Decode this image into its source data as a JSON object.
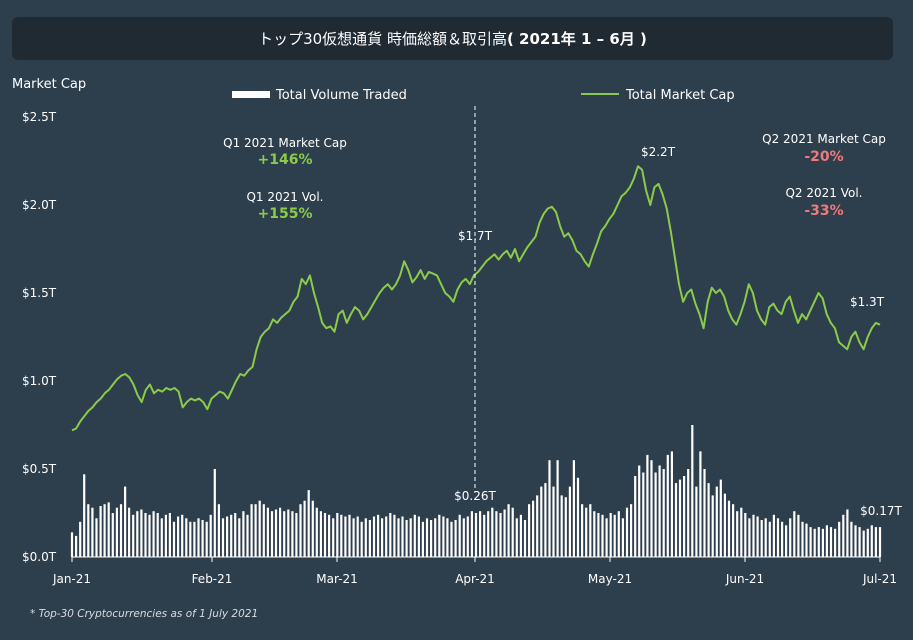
{
  "header": {
    "title_main": "トップ30仮想通貨 時価総額＆取引高",
    "title_period": "( 2021年 1 – 6月 )"
  },
  "footnote": "* Top-30  Cryptocurrencies as of 1 July 2021",
  "colors": {
    "background": "#2d3e4d",
    "title_bar": "#1f2a33",
    "market_cap_line": "#8ccb4a",
    "volume_bar": "#ffffff",
    "positive": "#8ccb4a",
    "negative": "#f07a7a"
  },
  "chart_data": {
    "type": "line",
    "ylabel": "Market Cap",
    "y_ticks": [
      "$0.0T",
      "$0.5T",
      "$1.0T",
      "$1.5T",
      "$2.0T",
      "$2.5T"
    ],
    "ylim": [
      0,
      2.5
    ],
    "x_ticks": [
      "Jan-21",
      "Feb-21",
      "Mar-21",
      "Apr-21",
      "May-21",
      "Jun-21",
      "Jul-21"
    ],
    "legend": {
      "volume": "Total Volume Traded",
      "market_cap": "Total Market Cap",
      "position": "top-center"
    },
    "annotations": {
      "q1_cap_label": "Q1 2021 Market Cap",
      "q1_cap_value": "+146%",
      "q1_vol_label": "Q1 2021 Vol.",
      "q1_vol_value": "+155%",
      "q2_cap_label": "Q2 2021 Market Cap",
      "q2_cap_value": "-20%",
      "q2_vol_label": "Q2 2021 Vol.",
      "q2_vol_value": "-33%",
      "apr_cap": "$1.7T",
      "apr_vol": "$0.26T",
      "peak_cap": "$2.2T",
      "end_cap": "$1.3T",
      "end_vol": "$0.17T"
    },
    "market_cap": [
      0.72,
      0.73,
      0.77,
      0.8,
      0.83,
      0.85,
      0.88,
      0.9,
      0.93,
      0.95,
      0.98,
      1.01,
      1.03,
      1.04,
      1.02,
      0.98,
      0.92,
      0.88,
      0.95,
      0.98,
      0.93,
      0.95,
      0.94,
      0.96,
      0.95,
      0.96,
      0.94,
      0.85,
      0.88,
      0.9,
      0.89,
      0.9,
      0.88,
      0.84,
      0.9,
      0.92,
      0.94,
      0.93,
      0.9,
      0.95,
      1.0,
      1.04,
      1.03,
      1.06,
      1.08,
      1.18,
      1.25,
      1.28,
      1.3,
      1.35,
      1.33,
      1.36,
      1.38,
      1.4,
      1.45,
      1.48,
      1.58,
      1.55,
      1.6,
      1.5,
      1.42,
      1.33,
      1.3,
      1.31,
      1.28,
      1.38,
      1.4,
      1.33,
      1.38,
      1.42,
      1.4,
      1.35,
      1.38,
      1.42,
      1.46,
      1.5,
      1.53,
      1.55,
      1.52,
      1.55,
      1.6,
      1.68,
      1.63,
      1.56,
      1.59,
      1.63,
      1.58,
      1.62,
      1.61,
      1.6,
      1.55,
      1.5,
      1.48,
      1.45,
      1.52,
      1.56,
      1.58,
      1.55,
      1.6,
      1.62,
      1.65,
      1.68,
      1.7,
      1.72,
      1.69,
      1.72,
      1.74,
      1.7,
      1.75,
      1.68,
      1.72,
      1.76,
      1.79,
      1.82,
      1.9,
      1.95,
      1.98,
      1.99,
      1.96,
      1.88,
      1.82,
      1.84,
      1.8,
      1.74,
      1.72,
      1.68,
      1.65,
      1.72,
      1.78,
      1.85,
      1.88,
      1.92,
      1.95,
      2.0,
      2.05,
      2.07,
      2.1,
      2.15,
      2.22,
      2.2,
      2.08,
      2.0,
      2.1,
      2.12,
      2.06,
      1.98,
      1.85,
      1.7,
      1.55,
      1.45,
      1.5,
      1.52,
      1.44,
      1.38,
      1.3,
      1.45,
      1.53,
      1.5,
      1.52,
      1.48,
      1.4,
      1.35,
      1.32,
      1.38,
      1.45,
      1.55,
      1.5,
      1.4,
      1.35,
      1.32,
      1.42,
      1.44,
      1.4,
      1.38,
      1.45,
      1.48,
      1.4,
      1.33,
      1.38,
      1.35,
      1.4,
      1.45,
      1.5,
      1.47,
      1.38,
      1.33,
      1.3,
      1.22,
      1.2,
      1.18,
      1.25,
      1.28,
      1.22,
      1.18,
      1.25,
      1.3,
      1.33,
      1.32
    ],
    "volume": [
      0.14,
      0.12,
      0.2,
      0.47,
      0.3,
      0.28,
      0.22,
      0.29,
      0.3,
      0.31,
      0.25,
      0.28,
      0.3,
      0.4,
      0.28,
      0.24,
      0.26,
      0.27,
      0.25,
      0.24,
      0.26,
      0.25,
      0.22,
      0.24,
      0.25,
      0.2,
      0.23,
      0.24,
      0.22,
      0.2,
      0.2,
      0.22,
      0.21,
      0.2,
      0.24,
      0.5,
      0.3,
      0.22,
      0.23,
      0.24,
      0.25,
      0.22,
      0.26,
      0.24,
      0.3,
      0.3,
      0.32,
      0.3,
      0.28,
      0.26,
      0.27,
      0.28,
      0.26,
      0.27,
      0.26,
      0.25,
      0.3,
      0.32,
      0.38,
      0.32,
      0.28,
      0.26,
      0.25,
      0.24,
      0.22,
      0.25,
      0.24,
      0.23,
      0.24,
      0.22,
      0.23,
      0.2,
      0.22,
      0.21,
      0.23,
      0.24,
      0.22,
      0.23,
      0.25,
      0.24,
      0.22,
      0.23,
      0.21,
      0.22,
      0.24,
      0.23,
      0.2,
      0.22,
      0.21,
      0.22,
      0.24,
      0.23,
      0.22,
      0.2,
      0.21,
      0.24,
      0.22,
      0.23,
      0.26,
      0.25,
      0.26,
      0.24,
      0.26,
      0.28,
      0.26,
      0.25,
      0.27,
      0.3,
      0.28,
      0.22,
      0.24,
      0.21,
      0.3,
      0.32,
      0.35,
      0.4,
      0.42,
      0.55,
      0.4,
      0.55,
      0.35,
      0.34,
      0.4,
      0.55,
      0.45,
      0.3,
      0.28,
      0.3,
      0.26,
      0.25,
      0.24,
      0.22,
      0.25,
      0.24,
      0.26,
      0.22,
      0.28,
      0.3,
      0.46,
      0.52,
      0.48,
      0.58,
      0.55,
      0.48,
      0.52,
      0.5,
      0.58,
      0.6,
      0.42,
      0.44,
      0.46,
      0.5,
      0.75,
      0.4,
      0.6,
      0.5,
      0.42,
      0.35,
      0.4,
      0.44,
      0.36,
      0.32,
      0.3,
      0.26,
      0.28,
      0.25,
      0.22,
      0.24,
      0.23,
      0.21,
      0.22,
      0.2,
      0.24,
      0.22,
      0.2,
      0.18,
      0.22,
      0.26,
      0.24,
      0.2,
      0.19,
      0.17,
      0.16,
      0.17,
      0.16,
      0.18,
      0.17,
      0.16,
      0.2,
      0.24,
      0.27,
      0.2,
      0.18,
      0.17,
      0.15,
      0.16,
      0.18,
      0.17,
      0.17
    ]
  }
}
